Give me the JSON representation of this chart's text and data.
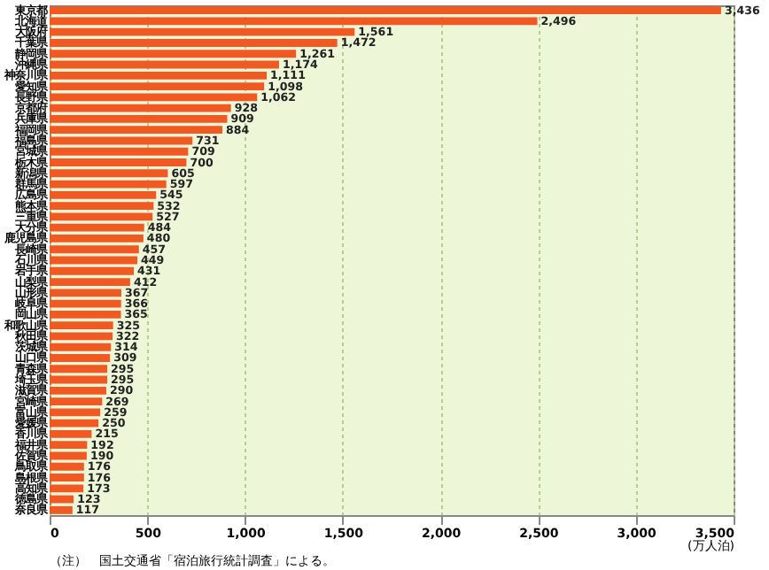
{
  "chart_data": {
    "type": "bar",
    "orientation": "horizontal",
    "xlabel": "(万人泊)",
    "annotations": [
      "（注）　国土交通省「宿泊旅行統計調査」による。"
    ],
    "categories": [
      "東京都",
      "北海道",
      "大阪府",
      "千葉県",
      "静岡県",
      "沖縄県",
      "神奈川県",
      "愛知県",
      "長野県",
      "京都府",
      "兵庫県",
      "福岡県",
      "福島県",
      "宮城県",
      "栃木県",
      "新潟県",
      "群馬県",
      "広島県",
      "熊本県",
      "三重県",
      "大分県",
      "鹿児島県",
      "長崎県",
      "石川県",
      "岩手県",
      "山梨県",
      "山形県",
      "岐阜県",
      "岡山県",
      "和歌山県",
      "秋田県",
      "茨城県",
      "山口県",
      "青森県",
      "埼玉県",
      "滋賀県",
      "宮崎県",
      "富山県",
      "愛媛県",
      "香川県",
      "福井県",
      "佐賀県",
      "鳥取県",
      "島根県",
      "高知県",
      "徳島県",
      "奈良県"
    ],
    "values": [
      3436,
      2496,
      1561,
      1472,
      1261,
      1174,
      1111,
      1098,
      1062,
      928,
      909,
      884,
      731,
      709,
      700,
      605,
      597,
      545,
      532,
      527,
      484,
      480,
      457,
      449,
      431,
      412,
      367,
      366,
      365,
      325,
      322,
      314,
      309,
      295,
      295,
      290,
      269,
      259,
      250,
      215,
      192,
      190,
      176,
      176,
      173,
      123,
      117
    ],
    "value_labels": [
      "3,436",
      "2,496",
      "1,561",
      "1,472",
      "1,261",
      "1,174",
      "1,111",
      "1,098",
      "1,062",
      "928",
      "909",
      "884",
      "731",
      "709",
      "700",
      "605",
      "597",
      "545",
      "532",
      "527",
      "484",
      "480",
      "457",
      "449",
      "431",
      "412",
      "367",
      "366",
      "365",
      "325",
      "322",
      "314",
      "309",
      "295",
      "295",
      "290",
      "269",
      "259",
      "250",
      "215",
      "192",
      "190",
      "176",
      "176",
      "173",
      "123",
      "117"
    ],
    "color": "#f05a22",
    "xlim": [
      0,
      3500
    ],
    "xticks": [
      0,
      500,
      {
        "value": 1000,
        "label": "1,000"
      },
      {
        "value": 1500,
        "label": "1,500"
      },
      {
        "value": 2000,
        "label": "2,000"
      },
      {
        "value": 2500,
        "label": "2,500"
      },
      {
        "value": 3000,
        "label": "3,000"
      },
      {
        "value": 3500,
        "label": "3,500"
      }
    ],
    "grid": "x"
  }
}
